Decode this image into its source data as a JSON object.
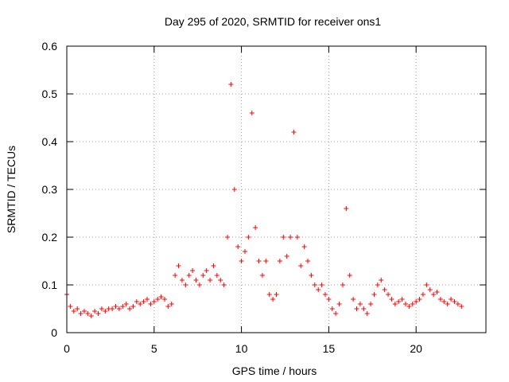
{
  "chart_data": {
    "type": "scatter",
    "title": "Day 295 of 2020, SRMTID for receiver ons1",
    "xlabel": "GPS time / hours",
    "ylabel": "SRMTID / TECUs",
    "xlim": [
      0,
      24
    ],
    "ylim": [
      0,
      0.6
    ],
    "xticks": [
      0,
      5,
      10,
      15,
      20
    ],
    "yticks": [
      0,
      0.1,
      0.2,
      0.3,
      0.4,
      0.5,
      0.6
    ],
    "grid": true,
    "marker": "+",
    "color": "#ff0000",
    "series": [
      {
        "name": "SRMTID",
        "x": [
          0.0,
          0.2,
          0.4,
          0.6,
          0.8,
          1.0,
          1.2,
          1.4,
          1.6,
          1.8,
          2.0,
          2.2,
          2.4,
          2.6,
          2.8,
          3.0,
          3.2,
          3.4,
          3.6,
          3.8,
          4.0,
          4.2,
          4.4,
          4.6,
          4.8,
          5.0,
          5.2,
          5.4,
          5.6,
          5.8,
          6.0,
          6.2,
          6.4,
          6.6,
          6.8,
          7.0,
          7.2,
          7.4,
          7.6,
          7.8,
          8.0,
          8.2,
          8.4,
          8.6,
          8.8,
          9.0,
          9.2,
          9.4,
          9.6,
          9.8,
          10.0,
          10.2,
          10.4,
          10.6,
          10.8,
          11.0,
          11.2,
          11.4,
          11.6,
          11.8,
          12.0,
          12.2,
          12.4,
          12.6,
          12.8,
          13.0,
          13.2,
          13.4,
          13.6,
          13.8,
          14.0,
          14.2,
          14.4,
          14.6,
          14.8,
          15.0,
          15.2,
          15.4,
          15.6,
          15.8,
          16.0,
          16.2,
          16.4,
          16.6,
          16.8,
          17.0,
          17.2,
          17.4,
          17.6,
          17.8,
          18.0,
          18.2,
          18.4,
          18.6,
          18.8,
          19.0,
          19.2,
          19.4,
          19.6,
          19.8,
          20.0,
          20.2,
          20.4,
          20.6,
          20.8,
          21.0,
          21.2,
          21.4,
          21.6,
          21.8,
          22.0,
          22.2,
          22.4,
          22.6
        ],
        "y": [
          0.08,
          0.055,
          0.045,
          0.05,
          0.04,
          0.045,
          0.04,
          0.035,
          0.045,
          0.04,
          0.05,
          0.045,
          0.05,
          0.05,
          0.055,
          0.05,
          0.055,
          0.06,
          0.05,
          0.055,
          0.065,
          0.06,
          0.065,
          0.07,
          0.06,
          0.065,
          0.07,
          0.075,
          0.07,
          0.055,
          0.06,
          0.12,
          0.14,
          0.11,
          0.1,
          0.12,
          0.13,
          0.11,
          0.1,
          0.12,
          0.13,
          0.11,
          0.14,
          0.12,
          0.11,
          0.1,
          0.2,
          0.52,
          0.3,
          0.18,
          0.15,
          0.17,
          0.2,
          0.46,
          0.22,
          0.15,
          0.12,
          0.15,
          0.08,
          0.07,
          0.08,
          0.15,
          0.2,
          0.16,
          0.2,
          0.42,
          0.2,
          0.14,
          0.18,
          0.15,
          0.12,
          0.1,
          0.09,
          0.1,
          0.08,
          0.07,
          0.05,
          0.04,
          0.06,
          0.1,
          0.26,
          0.12,
          0.07,
          0.05,
          0.06,
          0.05,
          0.04,
          0.06,
          0.08,
          0.1,
          0.11,
          0.09,
          0.08,
          0.07,
          0.06,
          0.065,
          0.07,
          0.06,
          0.055,
          0.06,
          0.065,
          0.07,
          0.08,
          0.1,
          0.09,
          0.08,
          0.085,
          0.07,
          0.065,
          0.06,
          0.07,
          0.065,
          0.06,
          0.055
        ]
      }
    ]
  }
}
